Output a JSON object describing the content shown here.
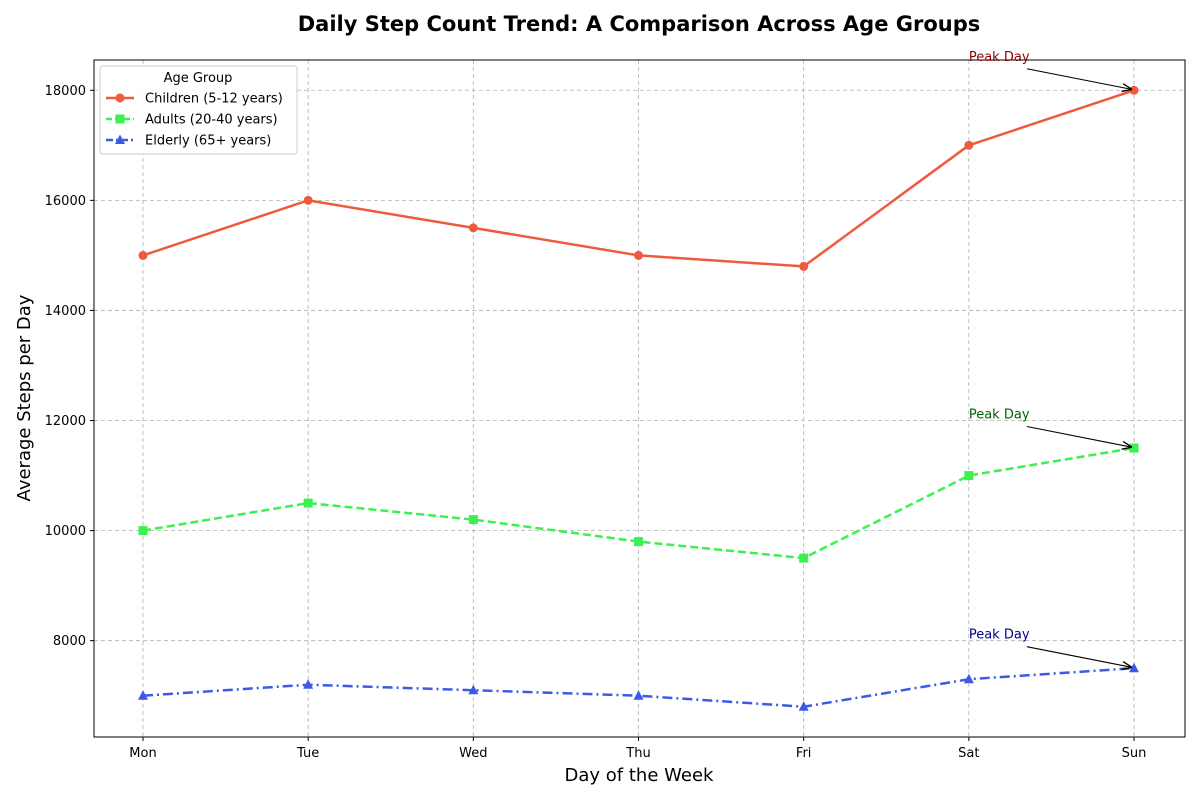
{
  "chart_data": {
    "type": "line",
    "title": "Daily Step Count Trend: A Comparison Across Age Groups",
    "xlabel": "Day of the Week",
    "ylabel": "Average Steps per Day",
    "categories": [
      "Mon",
      "Tue",
      "Wed",
      "Thu",
      "Fri",
      "Sat",
      "Sun"
    ],
    "ylim": [
      6250,
      18550
    ],
    "yticks": [
      8000,
      10000,
      12000,
      14000,
      16000,
      18000
    ],
    "grid": true,
    "legend": {
      "title": "Age Group",
      "placement": "top-left"
    },
    "series": [
      {
        "name": "Children (5-12 years)",
        "values": [
          15000,
          16000,
          15500,
          15000,
          14800,
          17000,
          18000
        ],
        "color": "#f05a3c",
        "marker": "circle",
        "linestyle": "solid"
      },
      {
        "name": "Adults (20-40 years)",
        "values": [
          10000,
          10500,
          10200,
          9800,
          9500,
          11000,
          11500
        ],
        "color": "#3cf050",
        "marker": "square",
        "linestyle": "dashed"
      },
      {
        "name": "Elderly (65+ years)",
        "values": [
          7000,
          7200,
          7100,
          7000,
          6800,
          7300,
          7500
        ],
        "color": "#3c5ae6",
        "marker": "triangle",
        "linestyle": "dashdot"
      }
    ],
    "annotations": [
      {
        "text": "Peak Day",
        "series": 0,
        "point": "Sun",
        "color": "#8b0000"
      },
      {
        "text": "Peak Day",
        "series": 1,
        "point": "Sun",
        "color": "#006400"
      },
      {
        "text": "Peak Day",
        "series": 2,
        "point": "Sun",
        "color": "#00008b"
      }
    ]
  }
}
